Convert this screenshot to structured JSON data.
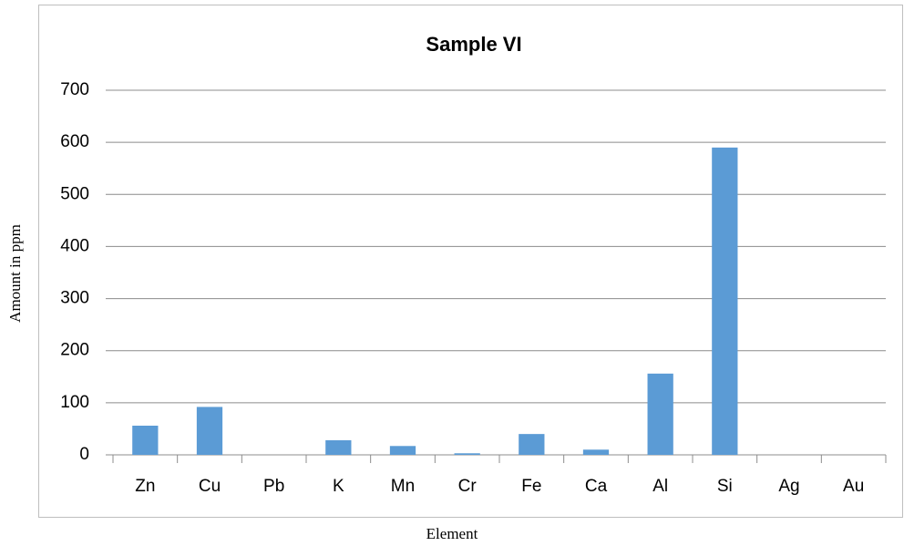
{
  "chart_data": {
    "type": "bar",
    "title": "Sample VI",
    "x_label": "Element",
    "y_label": "Amount in ppm",
    "categories": [
      "Zn",
      "Cu",
      "Pb",
      "K",
      "Mn",
      "Cr",
      "Fe",
      "Ca",
      "Al",
      "Si",
      "Ag",
      "Au"
    ],
    "values": [
      56,
      92,
      0,
      28,
      17,
      3,
      40,
      10,
      156,
      590,
      0,
      0
    ],
    "color": "#5b9bd5",
    "ylim": [
      0,
      700
    ],
    "yticks": [
      0,
      100,
      200,
      300,
      400,
      500,
      600,
      700
    ],
    "grid": true
  }
}
